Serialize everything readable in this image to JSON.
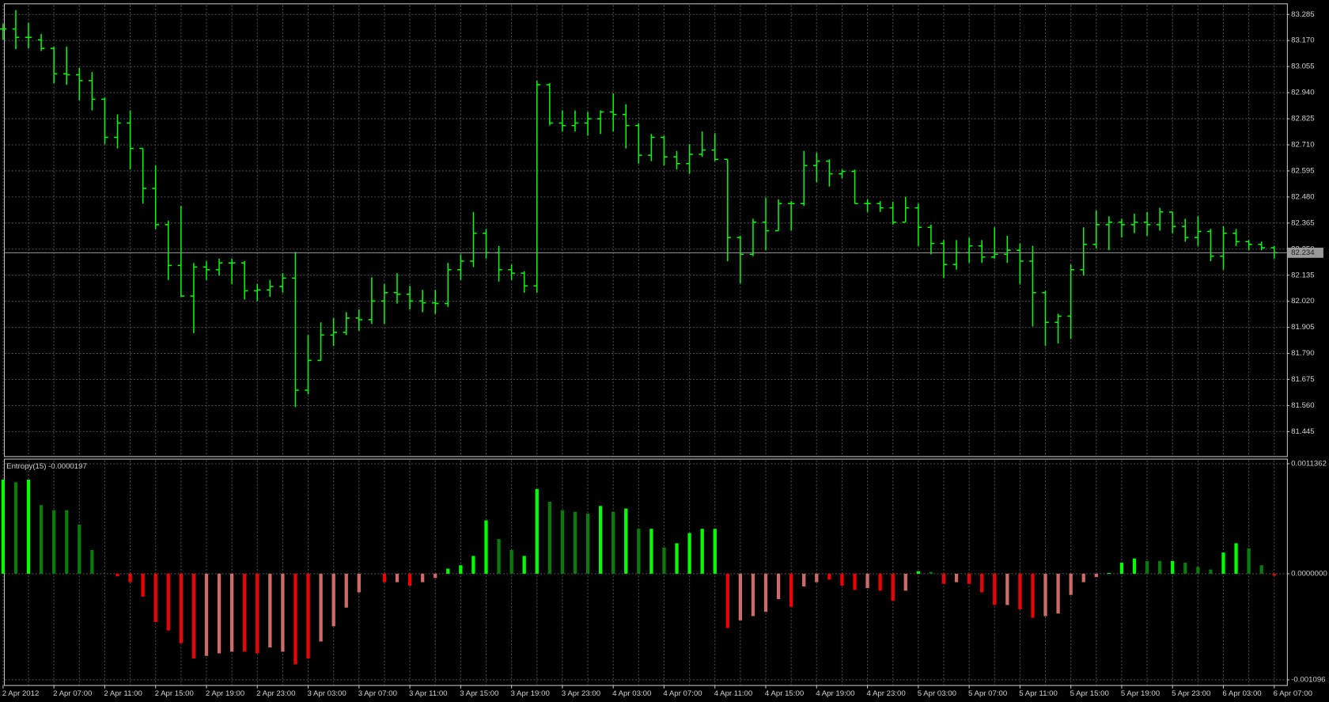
{
  "chart_data": [
    {
      "type": "ohlc",
      "color": "#00ff00",
      "grid": true,
      "categories": [
        "2 Apr 2012",
        null,
        null,
        null,
        "2 Apr 07:00",
        null,
        null,
        null,
        "2 Apr 11:00",
        null,
        null,
        null,
        "2 Apr 15:00",
        null,
        null,
        null,
        "2 Apr 19:00",
        null,
        null,
        null,
        "2 Apr 23:00",
        null,
        null,
        null,
        "3 Apr 03:00",
        null,
        null,
        null,
        "3 Apr 07:00",
        null,
        null,
        null,
        "3 Apr 11:00",
        null,
        null,
        null,
        "3 Apr 15:00",
        null,
        null,
        null,
        "3 Apr 19:00",
        null,
        null,
        null,
        "3 Apr 23:00",
        null,
        null,
        null,
        "4 Apr 03:00",
        null,
        null,
        null,
        "4 Apr 07:00",
        null,
        null,
        null,
        "4 Apr 11:00",
        null,
        null,
        null,
        "4 Apr 15:00",
        null,
        null,
        null,
        "4 Apr 19:00",
        null,
        null,
        null,
        "4 Apr 23:00",
        null,
        null,
        null,
        "5 Apr 03:00",
        null,
        null,
        null,
        "5 Apr 07:00",
        null,
        null,
        null,
        "5 Apr 11:00",
        null,
        null,
        null,
        "5 Apr 15:00",
        null,
        null,
        null,
        "5 Apr 19:00",
        null,
        null,
        null,
        "5 Apr 23:00",
        null,
        null,
        null,
        "6 Apr 03:00",
        null,
        null,
        null,
        "6 Apr 07:00"
      ],
      "open": [
        83.221,
        83.221,
        83.184,
        83.173,
        83.135,
        83.023,
        83.019,
        82.993,
        82.911,
        82.743,
        82.806,
        82.694,
        82.518,
        82.358,
        82.178,
        82.043,
        82.171,
        82.159,
        82.189,
        82.189,
        82.066,
        82.07,
        82.085,
        82.122,
        81.628,
        81.759,
        81.871,
        81.883,
        81.946,
        81.939,
        82.021,
        82.058,
        82.051,
        82.021,
        82.013,
        82.01,
        82.159,
        82.197,
        82.32,
        82.234,
        82.159,
        82.144,
        82.088,
        82.975,
        82.806,
        82.795,
        82.806,
        82.825,
        82.855,
        82.844,
        82.795,
        82.664,
        82.743,
        82.657,
        82.627,
        82.668,
        82.687,
        82.646,
        82.301,
        82.227,
        82.369,
        82.331,
        82.451,
        82.451,
        82.619,
        82.638,
        82.582,
        82.593,
        82.451,
        82.451,
        82.432,
        82.369,
        82.432,
        82.346,
        82.275,
        82.182,
        82.234,
        82.264,
        82.215,
        82.227,
        82.245,
        82.197,
        82.058,
        81.927,
        81.954,
        82.159,
        82.271,
        82.358,
        82.369,
        82.358,
        82.369,
        82.358,
        82.414,
        82.35,
        82.301,
        82.328,
        82.219,
        82.32,
        82.283,
        82.271,
        82.256
      ],
      "high": [
        83.244,
        83.304,
        83.248,
        83.199,
        83.143,
        83.143,
        83.049,
        83.031,
        82.919,
        82.844,
        82.862,
        82.694,
        82.619,
        82.376,
        82.44,
        82.189,
        82.197,
        82.208,
        82.208,
        82.197,
        82.096,
        82.114,
        82.144,
        82.238,
        81.871,
        81.927,
        81.946,
        81.972,
        81.984,
        82.126,
        82.096,
        82.144,
        82.088,
        82.07,
        82.07,
        82.189,
        82.227,
        82.414,
        82.339,
        82.264,
        82.182,
        82.152,
        82.993,
        82.982,
        82.862,
        82.862,
        82.855,
        82.862,
        82.937,
        82.889,
        82.806,
        82.758,
        82.75,
        82.683,
        82.713,
        82.769,
        82.761,
        82.646,
        82.309,
        82.384,
        82.477,
        82.47,
        82.462,
        82.683,
        82.675,
        82.646,
        82.601,
        82.601,
        82.47,
        82.462,
        82.459,
        82.481,
        82.451,
        82.358,
        82.29,
        82.29,
        82.301,
        82.29,
        82.346,
        82.309,
        82.275,
        82.264,
        82.066,
        81.965,
        82.182,
        82.346,
        82.421,
        82.395,
        82.384,
        82.406,
        82.414,
        82.432,
        82.414,
        82.384,
        82.395,
        82.339,
        82.35,
        82.339,
        82.29,
        82.283,
        82.264
      ],
      "low": [
        83.173,
        83.132,
        83.135,
        83.124,
        82.982,
        82.975,
        82.907,
        82.862,
        82.713,
        82.694,
        82.601,
        82.451,
        82.339,
        82.114,
        82.04,
        81.879,
        82.114,
        82.133,
        82.096,
        82.028,
        82.021,
        82.04,
        82.058,
        81.553,
        81.61,
        81.759,
        81.823,
        81.871,
        81.89,
        81.92,
        81.92,
        82.01,
        81.984,
        81.972,
        81.965,
        81.995,
        82.114,
        82.171,
        82.208,
        82.107,
        82.114,
        82.058,
        82.058,
        82.795,
        82.769,
        82.769,
        82.75,
        82.758,
        82.769,
        82.694,
        82.627,
        82.638,
        82.619,
        82.601,
        82.582,
        82.657,
        82.638,
        82.197,
        82.099,
        82.219,
        82.245,
        82.331,
        82.331,
        82.44,
        82.545,
        82.526,
        82.563,
        82.451,
        82.414,
        82.414,
        82.358,
        82.369,
        82.264,
        82.227,
        82.122,
        82.159,
        82.189,
        82.189,
        82.208,
        82.189,
        82.096,
        81.909,
        81.823,
        81.834,
        81.853,
        82.133,
        82.253,
        82.245,
        82.301,
        82.32,
        82.309,
        82.331,
        82.32,
        82.283,
        82.264,
        82.197,
        82.159,
        82.264,
        82.245,
        82.245,
        82.208
      ],
      "close": [
        83.221,
        83.184,
        83.184,
        83.135,
        83.023,
        83.019,
        82.993,
        82.911,
        82.743,
        82.806,
        82.694,
        82.518,
        82.358,
        82.178,
        82.043,
        82.171,
        82.159,
        82.189,
        82.189,
        82.066,
        82.07,
        82.085,
        82.122,
        81.628,
        81.759,
        81.871,
        81.883,
        81.946,
        81.939,
        82.021,
        82.058,
        82.051,
        82.021,
        82.013,
        82.01,
        82.159,
        82.197,
        82.32,
        82.234,
        82.159,
        82.144,
        82.088,
        82.975,
        82.806,
        82.795,
        82.806,
        82.825,
        82.855,
        82.844,
        82.795,
        82.664,
        82.743,
        82.657,
        82.627,
        82.668,
        82.687,
        82.646,
        82.301,
        82.227,
        82.369,
        82.331,
        82.451,
        82.451,
        82.619,
        82.638,
        82.582,
        82.593,
        82.451,
        82.451,
        82.432,
        82.369,
        82.432,
        82.346,
        82.275,
        82.182,
        82.234,
        82.264,
        82.215,
        82.227,
        82.245,
        82.197,
        82.058,
        81.927,
        81.954,
        82.159,
        82.271,
        82.358,
        82.369,
        82.358,
        82.369,
        82.358,
        82.414,
        82.35,
        82.301,
        82.328,
        82.219,
        82.32,
        82.283,
        82.271,
        82.256,
        82.234
      ],
      "ylim": [
        81.337,
        83.33
      ],
      "yticks": [
        83.285,
        {
          "value": 83.17,
          "label": "83.170"
        },
        83.055,
        {
          "value": 82.94,
          "label": "82.940"
        },
        82.825,
        {
          "value": 82.71,
          "label": "82.710"
        },
        82.595,
        {
          "value": 82.48,
          "label": "82.480"
        },
        82.365,
        {
          "value": 82.25,
          "label": "82.250"
        },
        82.135,
        {
          "value": 82.02,
          "label": "82.020"
        },
        81.905,
        {
          "value": 81.79,
          "label": "81.790"
        },
        81.675,
        {
          "value": 81.56,
          "label": "81.560"
        },
        81.445
      ]
    },
    {
      "type": "bar",
      "title": "Entropy(15)",
      "grid": true,
      "values": [
        0.0009717,
        0.0009454,
        0.0009717,
        0.0007091,
        0.0006566,
        0.0006566,
        0.0005077,
        0.0002451,
        0,
        -2.63e-05,
        -8.75e-05,
        -0.0002364,
        -0.000499,
        -0.0005865,
        -0.0007178,
        -0.0008754,
        -0.0008491,
        -0.0008229,
        -0.0008054,
        -0.0008054,
        -0.0008229,
        -0.0007616,
        -0.0008054,
        -0.0009367,
        -0.0008754,
        -0.0007003,
        -0.0005427,
        -0.0003502,
        -0.0001926,
        0,
        -8.75e-05,
        -8.75e-05,
        -0.0001226,
        -8.75e-05,
        -4.38e-05,
        5.25e-05,
        8.75e-05,
        0.0001838,
        0.0005515,
        0.0003589,
        0.0002451,
        0.0001838,
        0.0008754,
        0.0007441,
        0.0006566,
        0.000639,
        0.0006215,
        0.0007003,
        0.000639,
        0.0006741,
        0.000464,
        0.000464,
        0.0002714,
        0.0003151,
        0.0004202,
        0.000464,
        0.000464,
        -0.0005603,
        -0.0004815,
        -0.0004377,
        -0.0003939,
        -0.0002626,
        -0.0003414,
        -0.0001313,
        -8.75e-05,
        -6.13e-05,
        -0.0001226,
        -0.0001663,
        -0.0001488,
        -0.0001751,
        -0.0002801,
        -0.0001751,
        2.63e-05,
        1.75e-05,
        -0.000105,
        -8.75e-05,
        -0.000105,
        -0.0001926,
        -0.0003239,
        -0.0003239,
        -0.0003677,
        -0.0004552,
        -0.0004377,
        -0.0004114,
        -0.0002189,
        -8.75e-05,
        -3.5e-05,
        8.8e-06,
        0.0001138,
        0.0001576,
        0.0001313,
        0.0001313,
        0.0001313,
        0.0001138,
        7e-05,
        4.38e-05,
        0.0002189,
        0.0003151,
        0.0002626,
        8.75e-05,
        -1.97e-05
      ],
      "colors": [
        "#00ff00",
        "#0a7a0a",
        "#00ff00",
        "#0a7a0a",
        "#0a7a0a",
        "#0a7a0a",
        "#0a7a0a",
        "#0a7a0a",
        "#0a7a0a",
        "#ee0000",
        "#ee0000",
        "#ee0000",
        "#ee0000",
        "#ee0000",
        "#ee0000",
        "#ee0000",
        "#cd6a6a",
        "#cd6a6a",
        "#cd6a6a",
        "#ee0000",
        "#ee0000",
        "#cd6a6a",
        "#cd6a6a",
        "#ee0000",
        "#ee0000",
        "#cd6a6a",
        "#cd6a6a",
        "#cd6a6a",
        "#cd6a6a",
        "#cd6a6a",
        "#ee0000",
        "#cd6a6a",
        "#ee0000",
        "#cd6a6a",
        "#cd6a6a",
        "#00ff00",
        "#00ff00",
        "#00ff00",
        "#00ff00",
        "#0a7a0a",
        "#0a7a0a",
        "#00ff00",
        "#00ff00",
        "#0a7a0a",
        "#0a7a0a",
        "#0a7a0a",
        "#0a7a0a",
        "#00ff00",
        "#0a7a0a",
        "#00ff00",
        "#0a7a0a",
        "#00ff00",
        "#0a7a0a",
        "#00ff00",
        "#00ff00",
        "#00ff00",
        "#00ff00",
        "#ee0000",
        "#cd6a6a",
        "#cd6a6a",
        "#cd6a6a",
        "#cd6a6a",
        "#ee0000",
        "#cd6a6a",
        "#cd6a6a",
        "#ee0000",
        "#ee0000",
        "#ee0000",
        "#cd6a6a",
        "#ee0000",
        "#ee0000",
        "#cd6a6a",
        "#00ff00",
        "#0a7a0a",
        "#ee0000",
        "#cd6a6a",
        "#ee0000",
        "#ee0000",
        "#ee0000",
        "#cd6a6a",
        "#ee0000",
        "#ee0000",
        "#cd6a6a",
        "#cd6a6a",
        "#cd6a6a",
        "#cd6a6a",
        "#cd6a6a",
        "#00ff00",
        "#00ff00",
        "#00ff00",
        "#0a7a0a",
        "#0a7a0a",
        "#00ff00",
        "#0a7a0a",
        "#0a7a0a",
        "#0a7a0a",
        "#00ff00",
        "#00ff00",
        "#0a7a0a",
        "#0a7a0a",
        "#ee0000"
      ],
      "ylim": [
        -0.00115,
        0.00118
      ],
      "yticks": [
        -0.001096,
        {
          "value": 0,
          "label": "0.0000000"
        },
        0.0011362
      ]
    }
  ]
}
